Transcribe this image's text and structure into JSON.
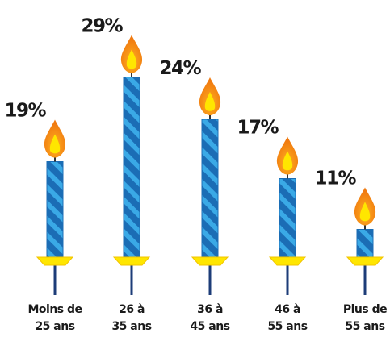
{
  "chart_data": {
    "type": "candle",
    "categories": [
      [
        "Moins de",
        "25 ans"
      ],
      [
        "26 à",
        "35 ans"
      ],
      [
        "36 à",
        "45 ans"
      ],
      [
        "46 à",
        "55 ans"
      ],
      [
        "Plus de",
        "55 ans"
      ]
    ],
    "values": [
      19,
      29,
      24,
      17,
      11
    ],
    "value_labels": [
      "19%",
      "29%",
      "24%",
      "17%",
      "11%"
    ],
    "color": "#1b6db5"
  }
}
